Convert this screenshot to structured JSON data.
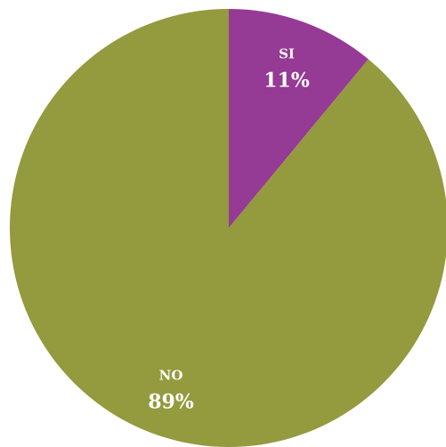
{
  "chart_data": {
    "type": "pie",
    "categories": [
      "SI",
      "NO"
    ],
    "values": [
      11,
      89
    ],
    "value_labels": [
      "11%",
      "89%"
    ],
    "colors": [
      "#953a95",
      "#949a3e"
    ]
  }
}
